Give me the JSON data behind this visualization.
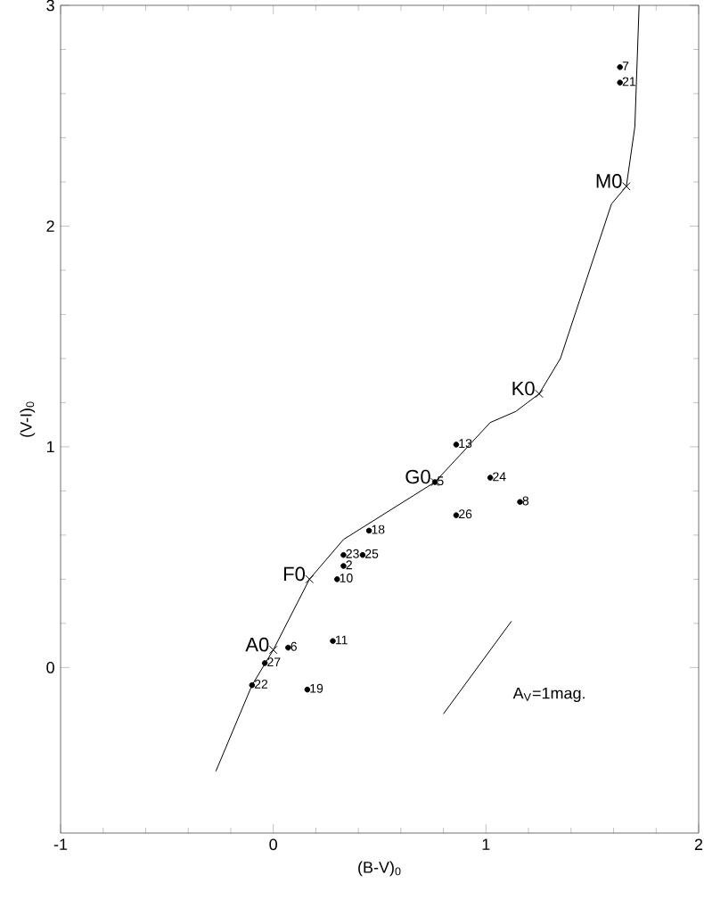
{
  "chart_data": {
    "type": "scatter",
    "xlabel": "(B-V)$_{0}$",
    "ylabel": "(V-I)$_{0}$",
    "xlim": [
      -1,
      2
    ],
    "ylim": [
      -0.75,
      3
    ],
    "xticks": [
      -1,
      0,
      1,
      2
    ],
    "yticks": [
      0,
      1,
      2,
      3
    ],
    "grid": false,
    "series": [
      {
        "type": "line",
        "color": "#000000",
        "marker": "none",
        "x": [
          -0.27,
          -0.1,
          0.0,
          0.17,
          0.33,
          0.76,
          1.02,
          1.14,
          1.25,
          1.35,
          1.59,
          1.66,
          1.7,
          1.72
        ],
        "values": [
          -0.47,
          -0.08,
          0.08,
          0.4,
          0.58,
          0.84,
          1.11,
          1.16,
          1.24,
          1.4,
          2.1,
          2.18,
          2.45,
          3.0
        ]
      },
      {
        "color": "#000000",
        "marker": "cross",
        "x": [
          0.0,
          0.17,
          0.76,
          1.25,
          1.66
        ],
        "values": [
          0.08,
          0.4,
          0.84,
          1.24,
          2.18
        ]
      },
      {
        "color": "#000000",
        "marker": "circle",
        "x": [
          0.86,
          0.76,
          1.02,
          1.16,
          0.86,
          0.45,
          0.33,
          0.42,
          0.33,
          0.3,
          0.28,
          0.07,
          -0.04,
          -0.1,
          0.16,
          1.63,
          1.63
        ],
        "values": [
          1.01,
          0.84,
          0.86,
          0.75,
          0.69,
          0.62,
          0.51,
          0.51,
          0.46,
          0.4,
          0.12,
          0.09,
          0.02,
          -0.08,
          -0.1,
          2.72,
          2.65
        ]
      },
      {
        "type": "line",
        "color": "#000000",
        "marker": "none",
        "x": [
          0.8,
          1.12
        ],
        "values": [
          -0.21,
          0.21
        ]
      }
    ],
    "annotations": [
      {
        "text": "A0",
        "x": 0.0,
        "y": 0.08
      },
      {
        "text": "F0",
        "x": 0.17,
        "y": 0.4
      },
      {
        "text": "G0",
        "x": 0.76,
        "y": 0.84
      },
      {
        "text": "K0",
        "x": 1.25,
        "y": 1.24
      },
      {
        "text": "M0",
        "x": 1.66,
        "y": 2.18
      },
      {
        "text": "13",
        "x": 0.86,
        "y": 1.01
      },
      {
        "text": "5",
        "x": 0.76,
        "y": 0.84
      },
      {
        "text": "24",
        "x": 1.02,
        "y": 0.86
      },
      {
        "text": "8",
        "x": 1.16,
        "y": 0.75
      },
      {
        "text": "26",
        "x": 0.86,
        "y": 0.69
      },
      {
        "text": "18",
        "x": 0.45,
        "y": 0.62
      },
      {
        "text": "23",
        "x": 0.33,
        "y": 0.51
      },
      {
        "text": "25",
        "x": 0.42,
        "y": 0.51
      },
      {
        "text": "2",
        "x": 0.33,
        "y": 0.46
      },
      {
        "text": "10",
        "x": 0.3,
        "y": 0.4
      },
      {
        "text": "11",
        "x": 0.28,
        "y": 0.12
      },
      {
        "text": "6",
        "x": 0.07,
        "y": 0.09
      },
      {
        "text": "27",
        "x": -0.04,
        "y": 0.02
      },
      {
        "text": "22",
        "x": -0.1,
        "y": -0.08
      },
      {
        "text": "19",
        "x": 0.16,
        "y": -0.1
      },
      {
        "text": "7",
        "x": 1.63,
        "y": 2.72
      },
      {
        "text": "21",
        "x": 1.63,
        "y": 2.65
      },
      "A$_{V}$=1mag."
    ]
  }
}
